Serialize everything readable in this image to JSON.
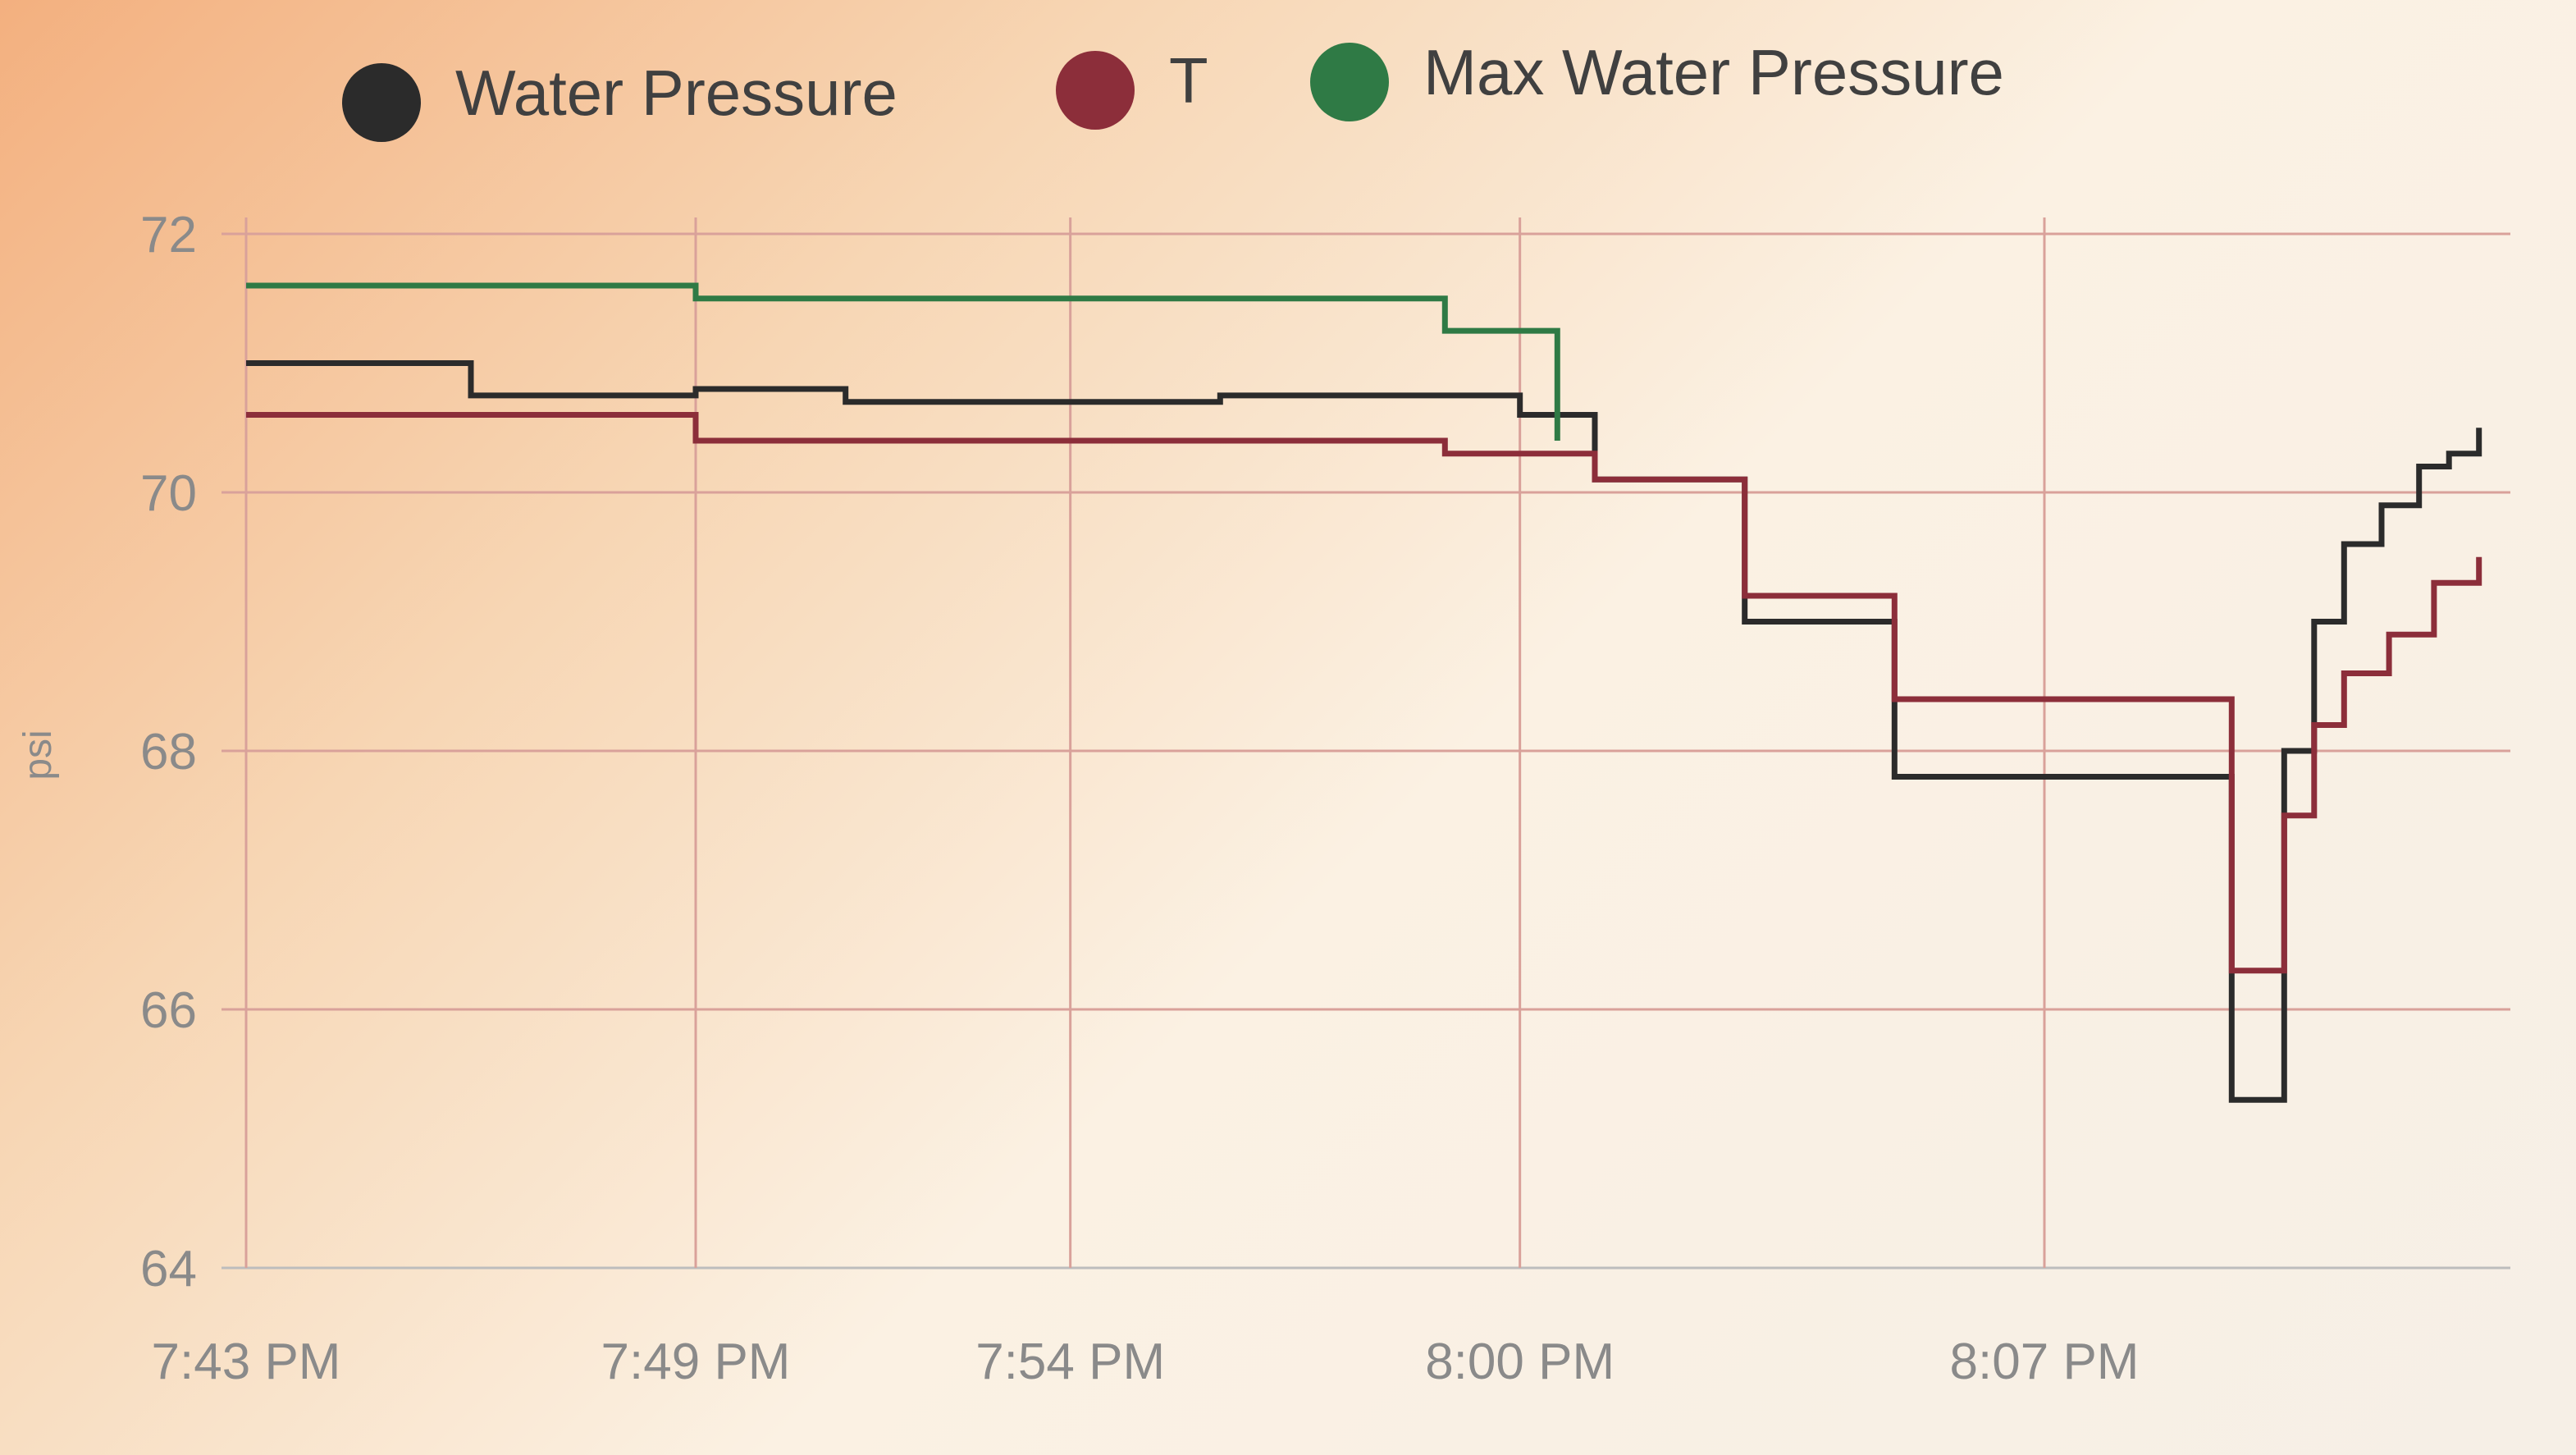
{
  "chart_data": {
    "type": "line",
    "step": true,
    "ylabel": "psi",
    "xlabel": "",
    "ylim": [
      64,
      72
    ],
    "yticks": [
      64,
      66,
      68,
      70,
      72
    ],
    "xlim": [
      0,
      30
    ],
    "xticks": [
      {
        "value": 0,
        "label": "7:43 PM"
      },
      {
        "value": 6,
        "label": "7:49 PM"
      },
      {
        "value": 11,
        "label": "7:54 PM"
      },
      {
        "value": 17,
        "label": "8:00 PM"
      },
      {
        "value": 24,
        "label": "8:07 PM"
      }
    ],
    "legend_position": "top",
    "grid": true,
    "series": [
      {
        "name": "Water Pressure",
        "color": "#2b2b2b",
        "x": [
          0,
          3,
          6,
          8,
          13,
          17,
          18,
          20,
          22,
          26.5,
          27.2,
          27.6,
          28,
          28.5,
          29,
          29.4,
          29.8
        ],
        "y": [
          71.0,
          70.75,
          70.8,
          70.7,
          70.75,
          70.6,
          70.1,
          69.0,
          67.8,
          65.3,
          68.0,
          69.0,
          69.6,
          69.9,
          70.2,
          70.3,
          70.5
        ]
      },
      {
        "name": "T",
        "color": "#8c2e3a",
        "x": [
          0,
          6,
          16,
          17,
          18,
          20,
          22,
          26.5,
          27.2,
          27.6,
          28,
          28.6,
          29.2,
          29.8
        ],
        "y": [
          70.6,
          70.4,
          70.3,
          70.3,
          70.1,
          69.2,
          68.4,
          66.3,
          67.5,
          68.2,
          68.6,
          68.9,
          69.3,
          69.5
        ]
      },
      {
        "name": "Max Water Pressure",
        "color": "#2f7a45",
        "x": [
          0,
          6,
          16,
          17,
          17.5
        ],
        "y": [
          71.6,
          71.5,
          71.25,
          71.25,
          70.4
        ]
      }
    ]
  }
}
